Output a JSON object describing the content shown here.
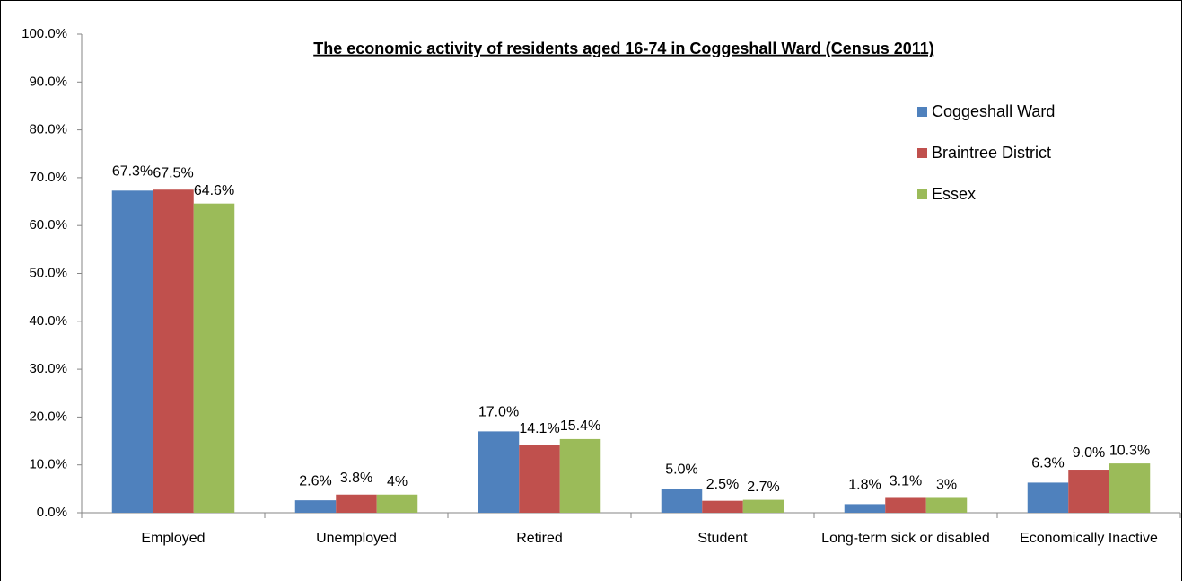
{
  "chart_data": {
    "type": "bar",
    "title": "The economic activity of residents aged 16-74 in Coggeshall Ward (Census 2011)",
    "categories": [
      "Employed",
      "Unemployed",
      "Retired",
      "Student",
      "Long-term sick or disabled",
      "Economically Inactive"
    ],
    "series": [
      {
        "name": "Coggeshall Ward",
        "color": "#4f81bd",
        "values": [
          67.3,
          2.6,
          17.0,
          5.0,
          1.8,
          6.3
        ],
        "value_labels": [
          "67.3%",
          "2.6%",
          "17.0%",
          "5.0%",
          "1.8%",
          "6.3%"
        ]
      },
      {
        "name": "Braintree District",
        "color": "#c0504d",
        "values": [
          67.5,
          3.8,
          14.1,
          2.5,
          3.1,
          9.0
        ],
        "value_labels": [
          "67.5%",
          "3.8%",
          "14.1%",
          "2.5%",
          "3.1%",
          "9.0%"
        ]
      },
      {
        "name": "Essex",
        "color": "#9bbb59",
        "values": [
          64.6,
          3.8,
          15.4,
          2.7,
          3.1,
          10.3
        ],
        "value_labels": [
          "64.6%",
          "4%",
          "15.4%",
          "2.7%",
          "3%",
          "10.3%"
        ]
      }
    ],
    "ylim": [
      0,
      100
    ],
    "yticks": [
      {
        "value": 0,
        "label": "0.0%"
      },
      {
        "value": 10,
        "label": "10.0%"
      },
      {
        "value": 20,
        "label": "20.0%"
      },
      {
        "value": 30,
        "label": "30.0%"
      },
      {
        "value": 40,
        "label": "40.0%"
      },
      {
        "value": 50,
        "label": "50.0%"
      },
      {
        "value": 60,
        "label": "60.0%"
      },
      {
        "value": 70,
        "label": "70.0%"
      },
      {
        "value": 80,
        "label": "80.0%"
      },
      {
        "value": 90,
        "label": "90.0%"
      },
      {
        "value": 100,
        "label": "100.0%"
      }
    ],
    "grid": false,
    "legend": "right"
  }
}
